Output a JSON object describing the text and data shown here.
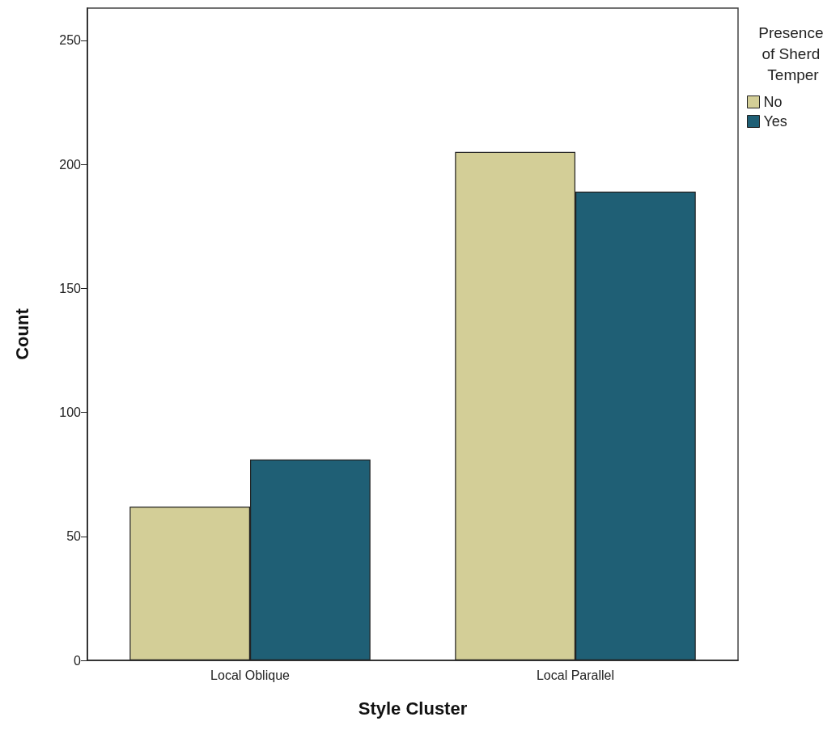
{
  "chart_data": {
    "type": "bar",
    "xlabel": "Style Cluster",
    "ylabel": "Count",
    "legend_title": "Presence of Sherd Temper",
    "categories": [
      "Local Oblique",
      "Local Parallel"
    ],
    "series": [
      {
        "name": "No",
        "color": "#d3ce97",
        "values": [
          62,
          205
        ]
      },
      {
        "name": "Yes",
        "color": "#1f5f75",
        "values": [
          81,
          189
        ]
      }
    ],
    "ylim": [
      0,
      263
    ],
    "yticks": [
      0,
      50,
      100,
      150,
      200,
      250
    ],
    "grid": false,
    "legend": "right"
  }
}
